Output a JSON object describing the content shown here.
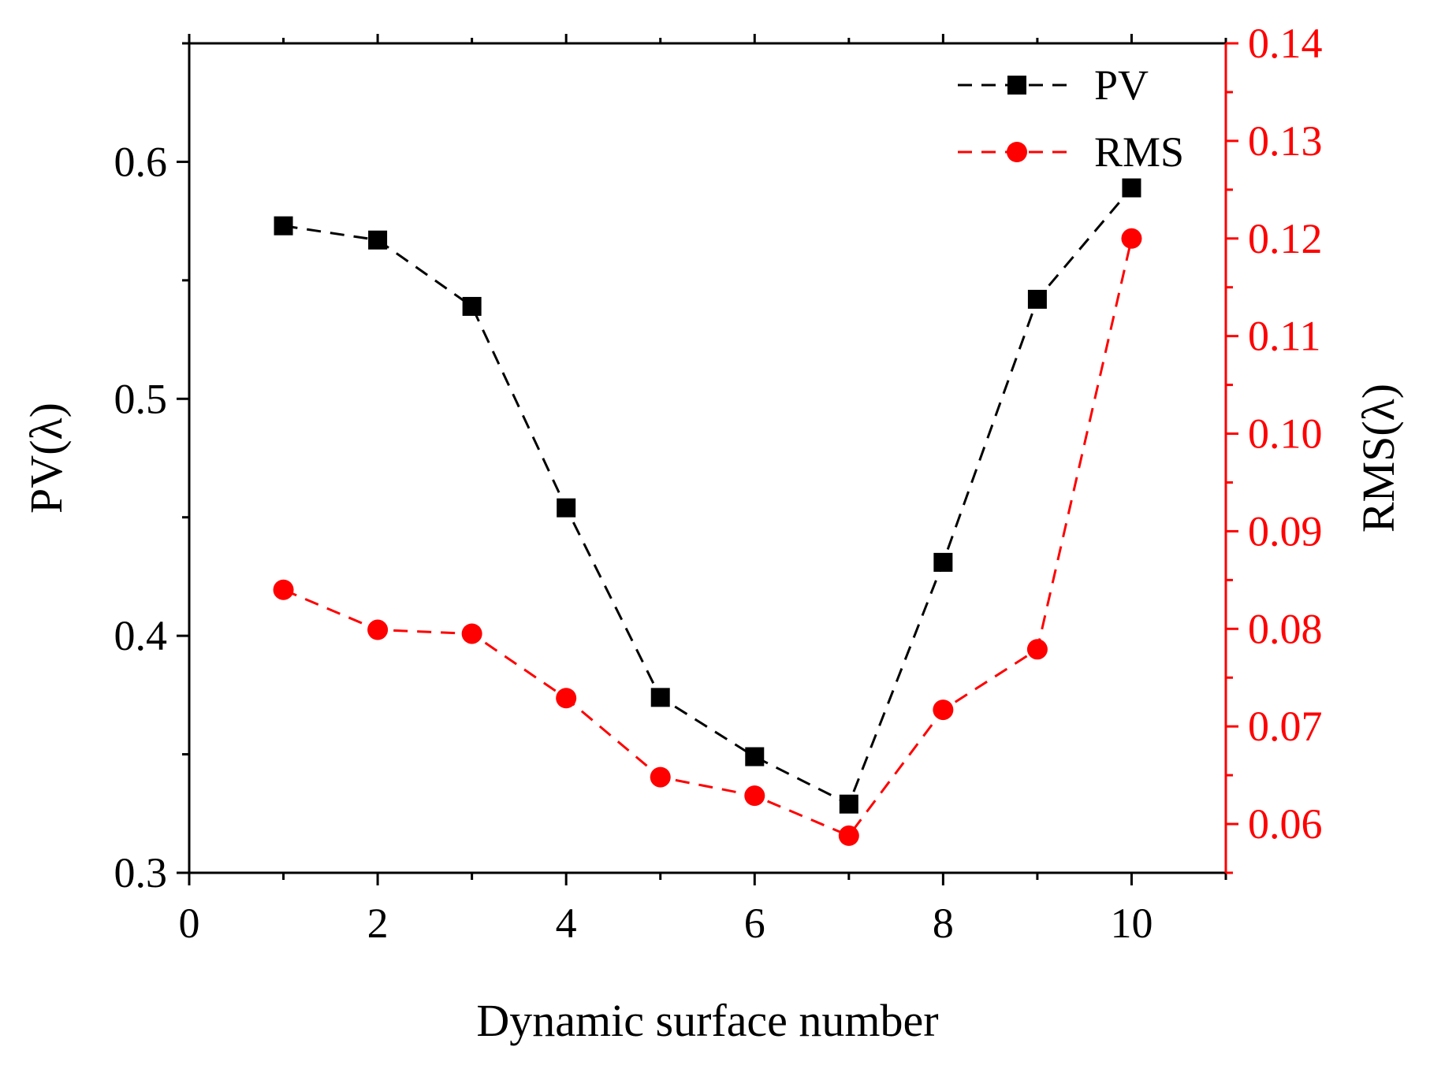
{
  "chart_data": {
    "type": "line",
    "title": "",
    "x": [
      1,
      2,
      3,
      4,
      5,
      6,
      7,
      8,
      9,
      10
    ],
    "xlabel": "Dynamic surface number",
    "xlim": [
      0,
      11
    ],
    "xticks": [
      0,
      2,
      4,
      6,
      8,
      10
    ],
    "xtick_labels": [
      "0",
      "2",
      "4",
      "6",
      "8",
      "10"
    ],
    "left_axis": {
      "label": "PV(λ)",
      "ylim": [
        0.3,
        0.65
      ],
      "ticks": [
        0.3,
        0.4,
        0.5,
        0.6
      ],
      "tick_labels": [
        "0.3",
        "0.4",
        "0.5",
        "0.6"
      ],
      "color": "#000000"
    },
    "right_axis": {
      "label": "RMS(λ)",
      "ylim": [
        0.055,
        0.14
      ],
      "ticks": [
        0.06,
        0.07,
        0.08,
        0.09,
        0.1,
        0.11,
        0.12,
        0.13,
        0.14
      ],
      "tick_labels": [
        "0.06",
        "0.07",
        "0.08",
        "0.09",
        "0.10",
        "0.11",
        "0.12",
        "0.13",
        "0.14"
      ],
      "color": "#ff0000"
    },
    "series": [
      {
        "name": "PV",
        "axis": "left",
        "marker": "square",
        "line_style": "dashed",
        "color": "#000000",
        "values": [
          0.573,
          0.567,
          0.539,
          0.454,
          0.374,
          0.349,
          0.329,
          0.431,
          0.542,
          0.589
        ]
      },
      {
        "name": "RMS",
        "axis": "right",
        "marker": "circle",
        "line_style": "dashed",
        "color": "#ff0000",
        "values": [
          0.084,
          0.0799,
          0.0795,
          0.0729,
          0.0648,
          0.0629,
          0.0588,
          0.0717,
          0.0779,
          0.12
        ]
      }
    ],
    "legend": {
      "position": "top-right",
      "entries": [
        "PV",
        "RMS"
      ]
    }
  }
}
